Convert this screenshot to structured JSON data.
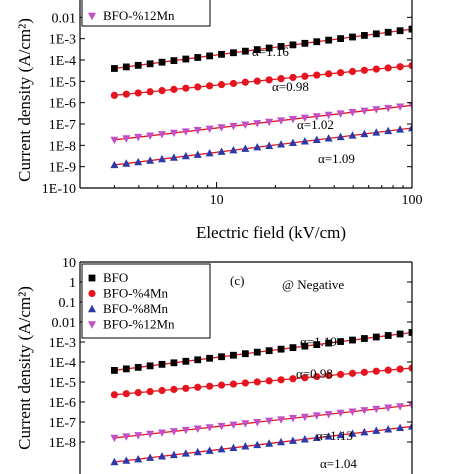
{
  "chart_data": [
    {
      "type": "scatter",
      "panel": "b",
      "scale": "log-log",
      "xlabel": "Electric field (kV/cm)",
      "ylabel": "Current density (A/cm²)",
      "xlim": [
        2,
        100
      ],
      "ylim": [
        1e-10,
        0.1
      ],
      "x_ticks": [
        "10",
        "100"
      ],
      "y_ticks": [
        "1E-10",
        "1E-9",
        "1E-8",
        "1E-7",
        "1E-6",
        "1E-5",
        "1E-4",
        "1E-3",
        "0.01"
      ],
      "legend": {
        "placement": "top-left",
        "entries": [
          "BFO-%12Mn"
        ]
      },
      "series": [
        {
          "name": "BFO",
          "color": "#000000",
          "marker": "square",
          "x_range": [
            3,
            100
          ],
          "y_range": [
            4e-05,
            0.0028
          ],
          "slope_label": "α=1.16"
        },
        {
          "name": "BFO-%4Mn",
          "color": "#e6141e",
          "marker": "circle",
          "x_range": [
            3,
            100
          ],
          "y_range": [
            2.2e-06,
            5.5e-05
          ],
          "slope_label": "α=0.98"
        },
        {
          "name": "BFO-%8Mn",
          "color": "#2b3aa8",
          "marker": "triangle-up",
          "x_range": [
            3,
            100
          ],
          "y_range": [
            1.2e-09,
            6.5e-08
          ],
          "slope_label": "α=1.09"
        },
        {
          "name": "BFO-%12Mn",
          "color": "#c04fc8",
          "marker": "triangle-down",
          "x_range": [
            3,
            100
          ],
          "y_range": [
            1.8e-08,
            7.5e-07
          ],
          "slope_label": "α=1.02"
        }
      ]
    },
    {
      "type": "scatter",
      "panel": "c",
      "panel_label": "(c)",
      "note": "@ Negative",
      "scale": "log-log",
      "ylabel": "Current density (A/cm²)",
      "xlim": [
        2,
        100
      ],
      "ylim": [
        1e-10,
        10
      ],
      "y_ticks": [
        "10",
        "1",
        "0.1",
        "0.01",
        "1E-3",
        "1E-4",
        "1E-5",
        "1E-6",
        "1E-7",
        "1E-8"
      ],
      "legend": {
        "placement": "top-left",
        "entries": [
          "BFO",
          "BFO-%4Mn",
          "BFO-%8Mn",
          "BFO-%12Mn"
        ]
      },
      "series": [
        {
          "name": "BFO",
          "color": "#000000",
          "marker": "square",
          "x_range": [
            3,
            100
          ],
          "y_range": [
            3.8e-05,
            0.003
          ],
          "slope_label": "α=1.19"
        },
        {
          "name": "BFO-%4Mn",
          "color": "#e6141e",
          "marker": "circle",
          "x_range": [
            3,
            100
          ],
          "y_range": [
            2.3e-06,
            5e-05
          ],
          "slope_label": "α=0.98"
        },
        {
          "name": "BFO-%8Mn",
          "color": "#2b3aa8",
          "marker": "triangle-up",
          "x_range": [
            3,
            100
          ],
          "y_range": [
            1e-09,
            6e-08
          ],
          "slope_label": "α=1.13"
        },
        {
          "name": "BFO-%12Mn",
          "color": "#c04fc8",
          "marker": "triangle-down",
          "x_range": [
            3,
            100
          ],
          "y_range": [
            1.6e-08,
            7e-07
          ],
          "slope_label": "α=1.04"
        }
      ]
    }
  ]
}
